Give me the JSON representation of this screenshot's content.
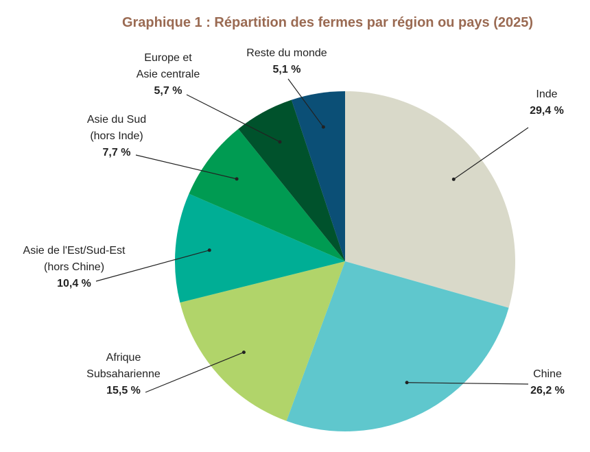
{
  "chart_data": {
    "type": "pie",
    "title": "Graphique 1 : Répartition des fermes par région ou pays (2025)",
    "categories": [
      "Inde",
      "Chine",
      "Afrique\nSubsaharienne",
      "Asie de l'Est/Sud-Est\n(hors Chine)",
      "Asie du Sud\n(hors Inde)",
      "Europe et\nAsie centrale",
      "Reste du monde"
    ],
    "values": [
      29.4,
      26.2,
      15.5,
      10.4,
      7.7,
      5.7,
      5.1
    ],
    "value_labels": [
      "29,4 %",
      "26,2 %",
      "15,5 %",
      "10,4 %",
      "7,7 %",
      "5,7 %",
      "5,1 %"
    ],
    "colors": [
      "#d9d9c9",
      "#5fc7cd",
      "#b1d46a",
      "#00ae95",
      "#009b52",
      "#00522c",
      "#0b4f76"
    ]
  }
}
